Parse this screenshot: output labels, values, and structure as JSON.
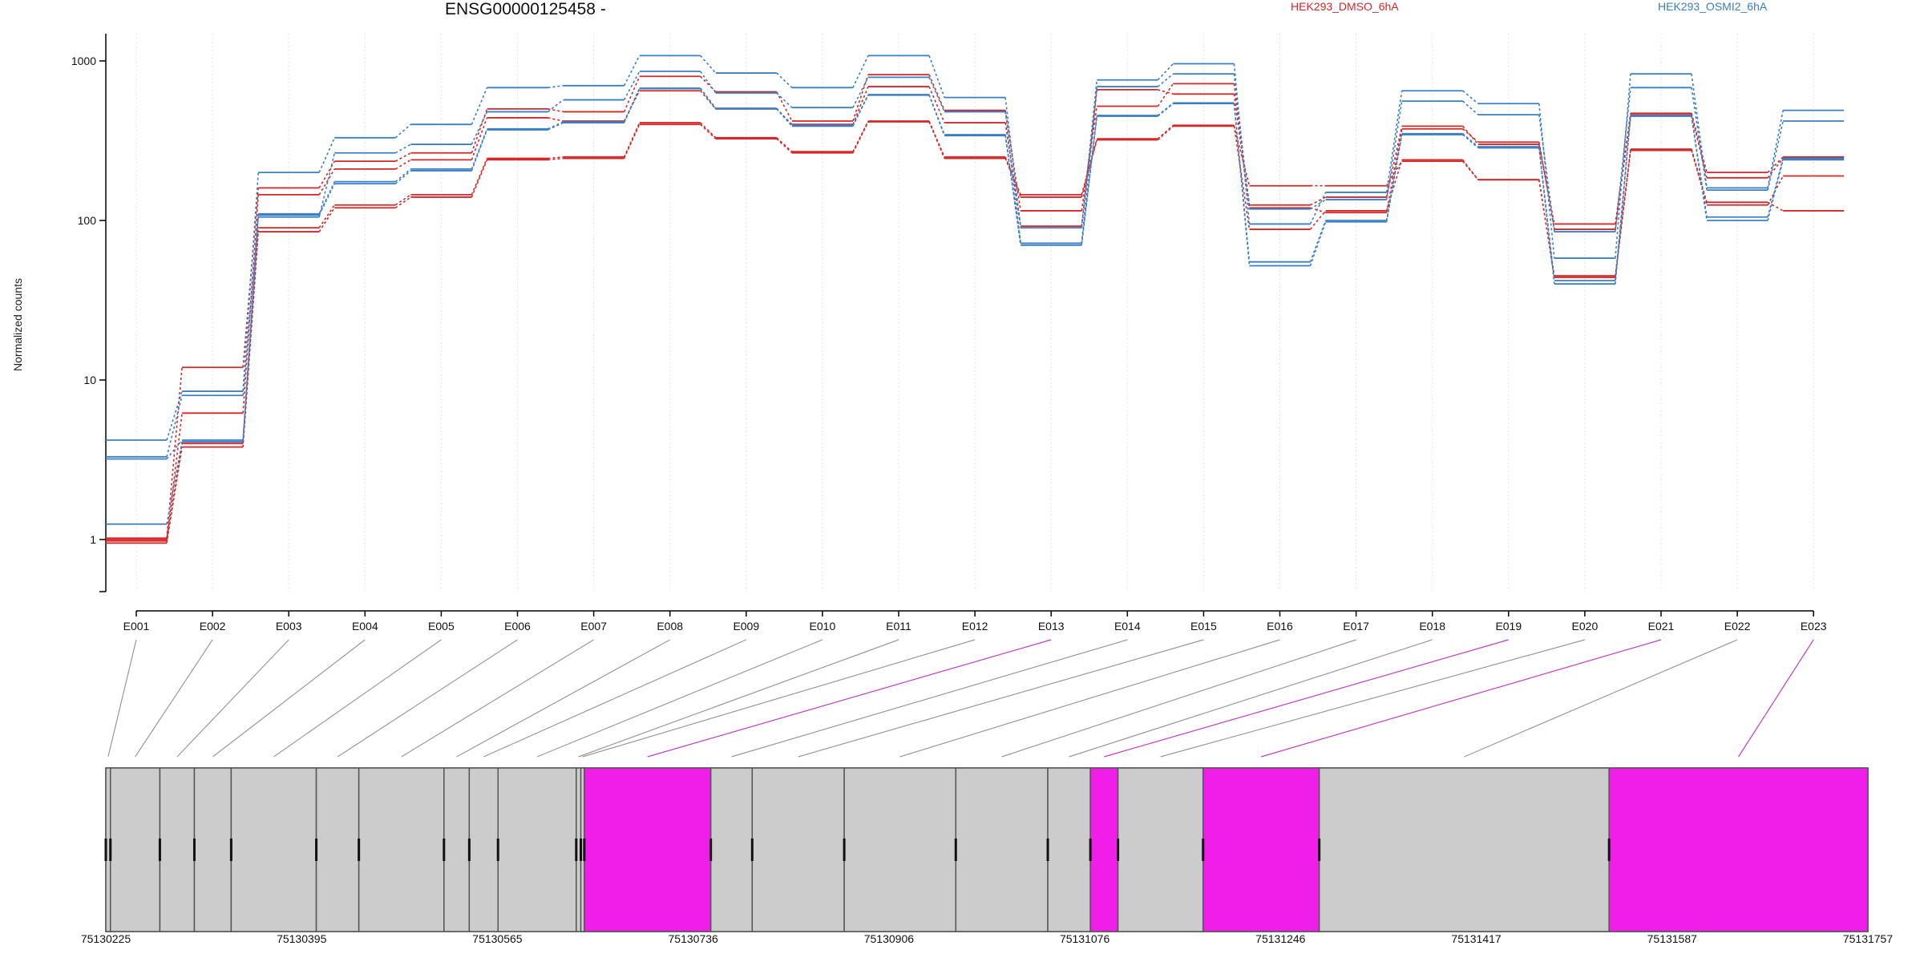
{
  "chart_data": {
    "type": "line",
    "title": "ENSG00000125458 -",
    "ylabel": "Normalized counts",
    "xlabel": "",
    "yscale": "log",
    "ylim": [
      0.5,
      1400
    ],
    "yticks": [
      1,
      10,
      100,
      1000
    ],
    "grid": "vertical dotted lines at exon centers",
    "legend": "top-right, horizontal",
    "colors": {
      "HEK293_DMSO_6hA": "#d62728",
      "HEK293_OSMI2_6hA": "#3a7fc4",
      "exon_normal": "#cccccc",
      "exon_highlight": "#f01ee8",
      "connector_normal": "#999999",
      "connector_highlight": "#c040c0"
    },
    "categories": [
      "E001",
      "E002",
      "E003",
      "E004",
      "E005",
      "E006",
      "E007",
      "E008",
      "E009",
      "E010",
      "E011",
      "E012",
      "E013",
      "E014",
      "E015",
      "E016",
      "E017",
      "E018",
      "E019",
      "E020",
      "E021",
      "E022",
      "E023"
    ],
    "series": [
      {
        "name": "HEK293_DMSO_6hA",
        "group": "HEK293_DMSO_6hA",
        "values": [
          1.02,
          12,
          160,
          235,
          265,
          500,
          480,
          800,
          640,
          420,
          820,
          490,
          115,
          520,
          720,
          125,
          140,
          390,
          300,
          95,
          470,
          200,
          250
        ]
      },
      {
        "name": "HEK293_DMSO_6hA",
        "group": "HEK293_DMSO_6hA",
        "values": [
          0.98,
          6.2,
          145,
          210,
          240,
          440,
          420,
          650,
          500,
          400,
          690,
          410,
          92,
          660,
          620,
          120,
          112,
          375,
          310,
          88,
          460,
          185,
          245
        ]
      },
      {
        "name": "HEK293_DMSO_6hA",
        "group": "HEK293_DMSO_6hA",
        "values": [
          0.95,
          3.8,
          85,
          120,
          140,
          240,
          245,
          400,
          325,
          265,
          415,
          245,
          140,
          320,
          390,
          165,
          165,
          235,
          180,
          44,
          275,
          125,
          190
        ]
      },
      {
        "name": "HEK293_DMSO_6hA",
        "group": "HEK293_DMSO_6hA",
        "values": [
          1.0,
          4.0,
          90,
          125,
          145,
          245,
          250,
          410,
          330,
          270,
          420,
          250,
          145,
          325,
          395,
          88,
          115,
          240,
          180,
          45,
          280,
          130,
          115
        ]
      },
      {
        "name": "HEK293_OSMI2_6hA",
        "group": "HEK293_OSMI2_6hA",
        "values": [
          4.2,
          8.5,
          200,
          330,
          400,
          680,
          700,
          1080,
          840,
          680,
          1080,
          590,
          90,
          760,
          960,
          95,
          150,
          650,
          540,
          58,
          830,
          160,
          490
        ]
      },
      {
        "name": "HEK293_OSMI2_6hA",
        "group": "HEK293_OSMI2_6hA",
        "values": [
          3.3,
          8.0,
          105,
          265,
          300,
          480,
          570,
          860,
          630,
          510,
          790,
          480,
          72,
          690,
          830,
          118,
          135,
          560,
          460,
          85,
          680,
          155,
          420
        ]
      },
      {
        "name": "HEK293_OSMI2_6hA",
        "group": "HEK293_OSMI2_6hA",
        "values": [
          3.2,
          4.2,
          108,
          170,
          205,
          370,
          410,
          670,
          500,
          390,
          610,
          340,
          70,
          450,
          540,
          52,
          98,
          345,
          285,
          40,
          450,
          100,
          240
        ]
      },
      {
        "name": "HEK293_OSMI2_6hA",
        "group": "HEK293_OSMI2_6hA",
        "values": [
          1.25,
          4.1,
          110,
          175,
          210,
          375,
          415,
          675,
          505,
          395,
          615,
          345,
          72,
          455,
          545,
          55,
          100,
          350,
          290,
          42,
          455,
          105,
          245
        ]
      }
    ],
    "gene_model": {
      "coordinate_labels": [
        "75130225",
        "75130395",
        "75130565",
        "75130736",
        "75130906",
        "75131076",
        "75131246",
        "75131417",
        "75131587",
        "75131757"
      ],
      "exons": [
        {
          "id": "E001",
          "start": 75130225,
          "end": 75130229,
          "highlight": false
        },
        {
          "id": "E002",
          "start": 75130229,
          "end": 75130272,
          "highlight": false
        },
        {
          "id": "E003",
          "start": 75130272,
          "end": 75130302,
          "highlight": false
        },
        {
          "id": "E004",
          "start": 75130302,
          "end": 75130334,
          "highlight": false
        },
        {
          "id": "E005",
          "start": 75130334,
          "end": 75130408,
          "highlight": false
        },
        {
          "id": "E006",
          "start": 75130408,
          "end": 75130445,
          "highlight": false
        },
        {
          "id": "E007",
          "start": 75130445,
          "end": 75130519,
          "highlight": false
        },
        {
          "id": "E008",
          "start": 75130519,
          "end": 75130541,
          "highlight": false
        },
        {
          "id": "E009",
          "start": 75130541,
          "end": 75130566,
          "highlight": false
        },
        {
          "id": "E010",
          "start": 75130566,
          "end": 75130634,
          "highlight": false
        },
        {
          "id": "E011",
          "start": 75130634,
          "end": 75130638,
          "highlight": false
        },
        {
          "id": "E012",
          "start": 75130638,
          "end": 75130641,
          "highlight": false
        },
        {
          "id": "E013",
          "start": 75130641,
          "end": 75130751,
          "highlight": true
        },
        {
          "id": "E014",
          "start": 75130751,
          "end": 75130787,
          "highlight": false
        },
        {
          "id": "E015",
          "start": 75130787,
          "end": 75130867,
          "highlight": false
        },
        {
          "id": "E016",
          "start": 75130867,
          "end": 75130964,
          "highlight": false
        },
        {
          "id": "E017",
          "start": 75130964,
          "end": 75131044,
          "highlight": false
        },
        {
          "id": "E018",
          "start": 75131044,
          "end": 75131081,
          "highlight": false
        },
        {
          "id": "E019",
          "start": 75131081,
          "end": 75131105,
          "highlight": true
        },
        {
          "id": "E020",
          "start": 75131105,
          "end": 75131179,
          "highlight": false
        },
        {
          "id": "E021",
          "start": 75131179,
          "end": 75131280,
          "highlight": true
        },
        {
          "id": "E022",
          "start": 75131280,
          "end": 75131532,
          "highlight": false
        },
        {
          "id": "E023",
          "start": 75131532,
          "end": 75131757,
          "highlight": true
        }
      ]
    }
  }
}
